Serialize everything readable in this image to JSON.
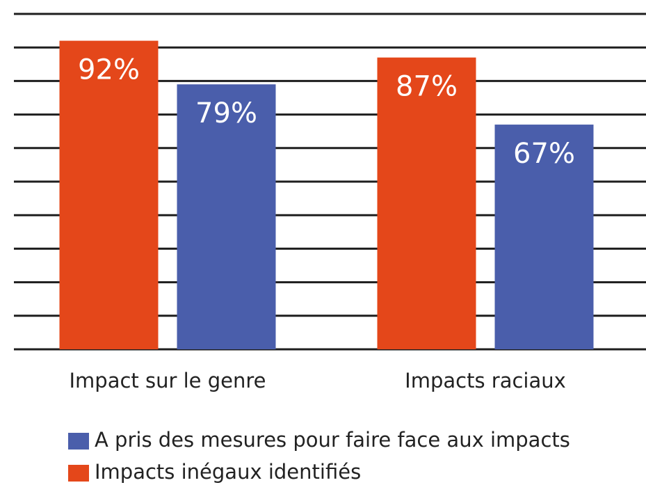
{
  "chart_data": {
    "type": "bar",
    "categories": [
      "Impact sur le genre",
      "Impacts raciaux"
    ],
    "series": [
      {
        "name": "Impacts inégaux identifiés",
        "color": "#e4471a",
        "values": [
          92,
          87
        ],
        "value_labels": [
          "92%",
          "87%"
        ]
      },
      {
        "name": "A pris des mesures pour faire face aux impacts",
        "color": "#4a5eab",
        "values": [
          79,
          67
        ],
        "value_labels": [
          "79%",
          "67%"
        ]
      }
    ],
    "ylim": [
      0,
      100
    ],
    "yticks": [
      0,
      10,
      20,
      30,
      40,
      50,
      60,
      70,
      80,
      90,
      100
    ],
    "grid": true
  }
}
